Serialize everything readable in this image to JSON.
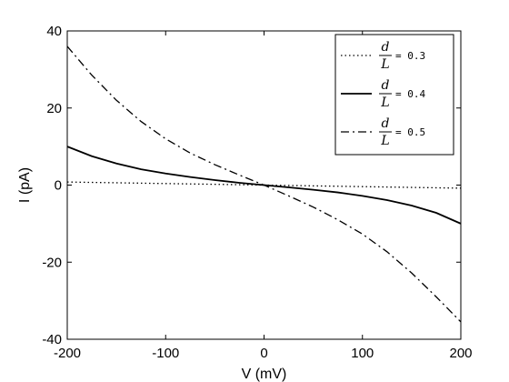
{
  "chart_data": {
    "type": "line",
    "xlabel": "V (mV)",
    "ylabel": "I (pA)",
    "xlim": [
      -200,
      200
    ],
    "ylim": [
      -40,
      40
    ],
    "xticks": [
      -200,
      -100,
      0,
      100,
      200
    ],
    "yticks": [
      -40,
      -20,
      0,
      20,
      40
    ],
    "grid": false,
    "legend": "top-right",
    "series": [
      {
        "name": "d/L = 0.3",
        "legend_num": "d",
        "legend_den": "L",
        "legend_val": "= 0.3",
        "style": "dotted",
        "x": [
          -200,
          -150,
          -100,
          -50,
          0,
          50,
          100,
          150,
          200
        ],
        "y": [
          0.8,
          0.6,
          0.4,
          0.2,
          0,
          -0.2,
          -0.4,
          -0.6,
          -0.8
        ]
      },
      {
        "name": "d/L = 0.4",
        "legend_num": "d",
        "legend_den": "L",
        "legend_val": "= 0.4",
        "style": "solid",
        "x": [
          -200,
          -175,
          -150,
          -125,
          -100,
          -75,
          -50,
          -25,
          0,
          25,
          50,
          75,
          100,
          125,
          150,
          175,
          200
        ],
        "y": [
          10,
          7.5,
          5.6,
          4.1,
          3.0,
          2.1,
          1.3,
          0.6,
          0,
          -0.6,
          -1.2,
          -1.9,
          -2.8,
          -3.9,
          -5.3,
          -7.2,
          -10
        ]
      },
      {
        "name": "d/L = 0.5",
        "legend_num": "d",
        "legend_den": "L",
        "legend_val": "= 0.5",
        "style": "dashdot",
        "x": [
          -200,
          -175,
          -150,
          -125,
          -100,
          -75,
          -50,
          -25,
          0,
          25,
          50,
          75,
          100,
          125,
          150,
          175,
          200
        ],
        "y": [
          36,
          28.5,
          22,
          16.5,
          12,
          8.3,
          5.3,
          2.6,
          0,
          -2.8,
          -5.7,
          -9,
          -12.7,
          -17.3,
          -22.8,
          -29,
          -35.5
        ]
      }
    ]
  }
}
